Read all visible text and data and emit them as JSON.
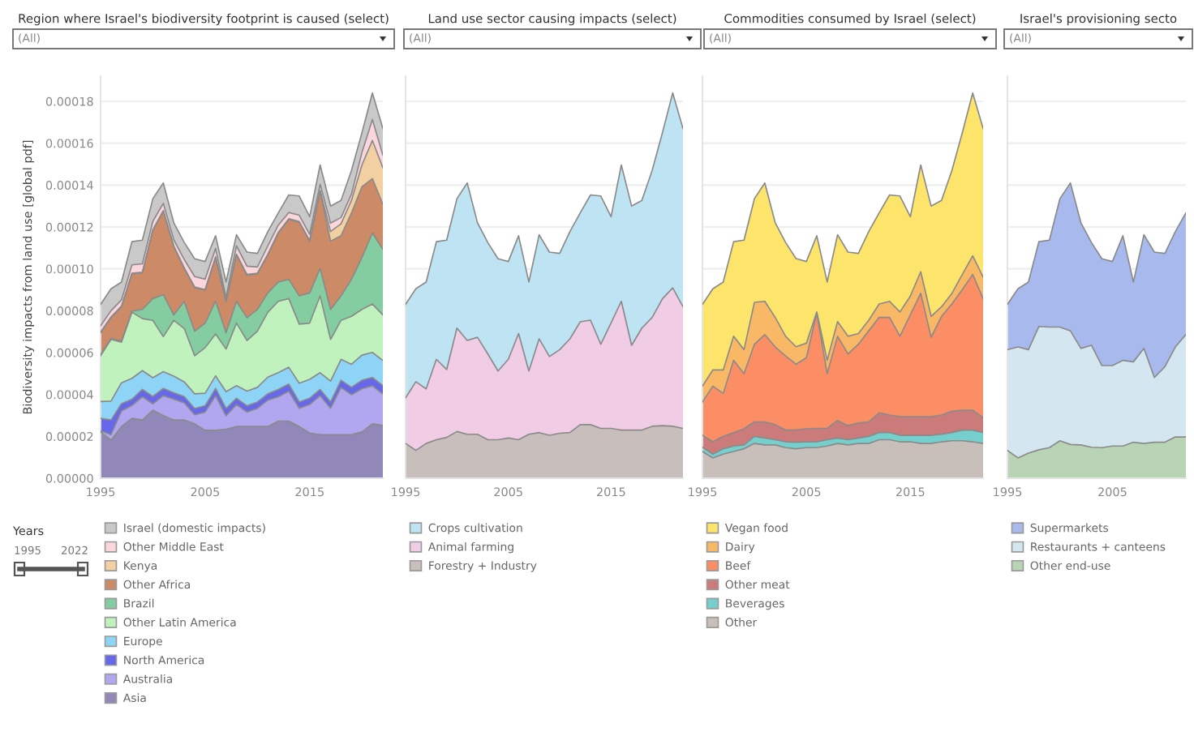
{
  "chart_data": [
    {
      "type": "area",
      "stacked": true,
      "title": "Region where Israel's biodiversity footprint is caused (select)",
      "ylabel": "Biodiversity impacts from land use [global pdf]",
      "x": [
        1995,
        1996,
        1997,
        1998,
        1999,
        2000,
        2001,
        2002,
        2003,
        2004,
        2005,
        2006,
        2007,
        2008,
        2009,
        2010,
        2011,
        2012,
        2013,
        2014,
        2015,
        2016,
        2017,
        2018,
        2019,
        2020,
        2021,
        2022
      ],
      "xlim": [
        1995,
        2022
      ],
      "xticks": [
        1995,
        2005,
        2015
      ],
      "ylim": [
        0,
        0.000192
      ],
      "yticks": [
        {
          "value": 0,
          "label": "0.00000"
        },
        {
          "value": 2e-05,
          "label": "0.00002"
        },
        {
          "value": 4e-05,
          "label": "0.00004"
        },
        {
          "value": 6e-05,
          "label": "0.00006"
        },
        {
          "value": 8e-05,
          "label": "0.00008"
        },
        {
          "value": 0.0001,
          "label": "0.00010"
        },
        {
          "value": 0.00012,
          "label": "0.00012"
        },
        {
          "value": 0.00014,
          "label": "0.00014"
        },
        {
          "value": 0.00016,
          "label": "0.00016"
        },
        {
          "value": 0.00018,
          "label": "0.00018"
        }
      ],
      "grid": "y",
      "legend": "bottom",
      "annotations": [
        "(All)",
        "Years",
        "1995",
        "2022"
      ],
      "series": [
        {
          "name": "Asia",
          "color": "#9188b9",
          "values": [
            2.21e-05,
            1.82e-05,
            2.47e-05,
            2.86e-05,
            2.78e-05,
            3.25e-05,
            2.99e-05,
            2.78e-05,
            2.78e-05,
            2.6e-05,
            2.29e-05,
            2.29e-05,
            2.34e-05,
            2.47e-05,
            2.47e-05,
            2.47e-05,
            2.47e-05,
            2.73e-05,
            2.73e-05,
            2.47e-05,
            2.16e-05,
            2.08e-05,
            2.08e-05,
            2.08e-05,
            2.08e-05,
            2.21e-05,
            2.6e-05,
            2.52e-05
          ]
        },
        {
          "name": "Australia",
          "color": "#b1a7f0",
          "values": [
            5e-07,
            2.6e-06,
            7.4e-06,
            6.1e-06,
            1.11e-05,
            3e-06,
            9.5e-06,
            1e-05,
            8.2e-06,
            4.3e-06,
            8.7e-06,
            1.65e-05,
            6.4e-06,
            1.05e-05,
            6.9e-06,
            8.7e-06,
            1.26e-05,
            1.16e-05,
            1.42e-05,
            8.7e-06,
            1.36e-05,
            1.86e-05,
            1.26e-05,
            2.25e-05,
            1.91e-05,
            2.07e-05,
            1.81e-05,
            1.5e-05
          ]
        },
        {
          "name": "North America",
          "color": "#6767ec",
          "values": [
            6e-06,
            7e-06,
            3.5e-06,
            3e-06,
            3.5e-06,
            3.5e-06,
            3.5e-06,
            3e-06,
            3e-06,
            3e-06,
            3e-06,
            3.5e-06,
            3.5e-06,
            3e-06,
            3e-06,
            3e-06,
            3e-06,
            3.5e-06,
            3.5e-06,
            3e-06,
            3e-06,
            3e-06,
            3e-06,
            3.5e-06,
            3.5e-06,
            4e-06,
            4e-06,
            4e-06
          ]
        },
        {
          "name": "Europe",
          "color": "#8ed4f6",
          "values": [
            8e-06,
            9e-06,
            1e-05,
            1e-05,
            9e-06,
            9e-06,
            8e-06,
            8e-06,
            7e-06,
            7e-06,
            6e-06,
            6e-06,
            8e-06,
            6e-06,
            7e-06,
            7e-06,
            8e-06,
            8e-06,
            8e-06,
            9e-06,
            9e-06,
            8e-06,
            1e-05,
            1e-05,
            1.1e-05,
            1.2e-05,
            1.2e-05,
            1.2e-05
          ]
        },
        {
          "name": "Other Latin America",
          "color": "#bff2bd",
          "values": [
            2.19e-05,
            2.95e-05,
            1.94e-05,
            3.16e-05,
            2.48e-05,
            2.74e-05,
            1.67e-05,
            2.66e-05,
            2.55e-05,
            1.82e-05,
            2.18e-05,
            2e-05,
            2.04e-05,
            2.99e-05,
            2.42e-05,
            2.68e-05,
            3.1e-05,
            3.41e-05,
            3.28e-05,
            2.82e-05,
            2.69e-05,
            3.67e-05,
            1.99e-05,
            1.86e-05,
            2.29e-05,
            2.18e-05,
            2.31e-05,
            2.18e-05
          ]
        },
        {
          "name": "Brazil",
          "color": "#83cda0",
          "values": [
            5e-07,
            5e-07,
            5e-07,
            5e-07,
            4.4e-06,
            1.04e-05,
            2.01e-05,
            2.6e-06,
            1.3e-05,
            1.17e-05,
            1.17e-05,
            1.56e-05,
            7.8e-06,
            1.04e-05,
            1.09e-05,
            1.04e-05,
            9.2e-06,
            9.2e-06,
            9.2e-06,
            1.35e-05,
            1.44e-05,
            1.31e-05,
            1.43e-05,
            1.17e-05,
            1.77e-05,
            2.48e-05,
            3.39e-05,
            3.13e-05
          ]
        },
        {
          "name": "Other Africa",
          "color": "#cc8a66",
          "values": [
            1.05e-05,
            9.9e-06,
            1.64e-05,
            1.78e-05,
            1.75e-05,
            3.26e-05,
            3.98e-05,
            3.26e-05,
            1.57e-05,
            2.08e-05,
            1.57e-05,
            2.09e-05,
            1.5e-05,
            2.22e-05,
            2.03e-05,
            1.7e-05,
            1.82e-05,
            2.34e-05,
            2.86e-05,
            3.52e-05,
            2.47e-05,
            3.69e-05,
            3.26e-05,
            2.87e-05,
            3.17e-05,
            3.38e-05,
            2.6e-05,
            2.16e-05
          ]
        },
        {
          "name": "Kenya",
          "color": "#f3d0a2",
          "values": [
            3e-07,
            3e-07,
            3e-07,
            3e-07,
            3e-07,
            3e-07,
            3e-07,
            3e-07,
            3e-07,
            3e-07,
            3e-07,
            3e-07,
            3e-07,
            3e-07,
            3e-07,
            3e-07,
            3e-07,
            3e-07,
            3e-07,
            3e-07,
            3e-07,
            3e-07,
            4.6e-06,
            5.7e-06,
            6e-06,
            1.04e-05,
            1.82e-05,
            1.74e-05
          ]
        },
        {
          "name": "Other Middle East",
          "color": "#fcd6dd",
          "values": [
            3e-06,
            3e-06,
            3e-06,
            4e-06,
            4e-06,
            4e-06,
            3.5e-06,
            3e-06,
            4e-06,
            5e-06,
            5e-06,
            4e-06,
            1.5e-06,
            4e-06,
            4e-06,
            3e-06,
            4e-06,
            3.5e-06,
            3e-06,
            3e-06,
            3e-06,
            3e-06,
            4e-06,
            3e-06,
            3e-06,
            6e-06,
            1e-05,
            6e-06
          ]
        },
        {
          "name": "Israel (domestic impacts)",
          "color": "#c9c9c9",
          "values": [
            1.02e-05,
            1.05e-05,
            8.5e-06,
            1.11e-05,
            1.13e-05,
            1.08e-05,
            9.7e-06,
            8.1e-06,
            8.1e-06,
            8.5e-06,
            8.4e-06,
            6.1e-06,
            7.4e-06,
            5.3e-06,
            6.7e-06,
            6.5e-06,
            6.8e-06,
            5.8e-06,
            8.4e-06,
            9.2e-06,
            8.4e-06,
            9.2e-06,
            8.2e-06,
            8.2e-06,
            1.13e-05,
            9.4e-06,
            1.27e-05,
            1.27e-05
          ]
        }
      ]
    },
    {
      "type": "area",
      "stacked": true,
      "title": "Land use sector causing impacts (select)",
      "x": [
        1995,
        1996,
        1997,
        1998,
        1999,
        2000,
        2001,
        2002,
        2003,
        2004,
        2005,
        2006,
        2007,
        2008,
        2009,
        2010,
        2011,
        2012,
        2013,
        2014,
        2015,
        2016,
        2017,
        2018,
        2019,
        2020,
        2021,
        2022
      ],
      "xlim": [
        1995,
        2022
      ],
      "xticks": [
        1995,
        2005,
        2015
      ],
      "ylim": [
        0,
        0.000192
      ],
      "yticks": [
        0,
        2e-05,
        4e-05,
        6e-05,
        8e-05,
        0.0001,
        0.00012,
        0.00014,
        0.00016,
        0.00018
      ],
      "grid": "y",
      "legend": "bottom",
      "tick_labels": "x",
      "annotations": [
        "(All)"
      ],
      "series": [
        {
          "name": "Forestry + Industry",
          "color": "#c8bebb",
          "values": [
            1.66e-05,
            1.33e-05,
            1.66e-05,
            1.84e-05,
            1.95e-05,
            2.23e-05,
            2.1e-05,
            2.1e-05,
            1.84e-05,
            1.84e-05,
            1.92e-05,
            1.84e-05,
            2.1e-05,
            2.18e-05,
            2.05e-05,
            2.15e-05,
            2.18e-05,
            2.56e-05,
            2.56e-05,
            2.38e-05,
            2.38e-05,
            2.3e-05,
            2.3e-05,
            2.3e-05,
            2.48e-05,
            2.51e-05,
            2.48e-05,
            2.38e-05
          ]
        },
        {
          "name": "Animal farming",
          "color": "#f0cde4",
          "values": [
            2.18e-05,
            3.28e-05,
            2.61e-05,
            3.84e-05,
            3.24e-05,
            4.94e-05,
            4.48e-05,
            4.63e-05,
            4.1e-05,
            3.28e-05,
            3.76e-05,
            5.07e-05,
            3.02e-05,
            4.48e-05,
            3.76e-05,
            3.99e-05,
            4.48e-05,
            4.91e-05,
            4.99e-05,
            4.02e-05,
            5.04e-05,
            6.15e-05,
            4.05e-05,
            4.87e-05,
            5.2e-05,
            6.06e-05,
            6.61e-05,
            5.81e-05
          ]
        },
        {
          "name": "Crops cultivation",
          "color": "#bee3f2",
          "values": [
            4.46e-05,
            4.44e-05,
            5.1e-05,
            5.62e-05,
            6.18e-05,
            6.18e-05,
            7.52e-05,
            5.47e-05,
            5.32e-05,
            5.36e-05,
            4.67e-05,
            4.67e-05,
            4.25e-05,
            4.97e-05,
            4.99e-05,
            4.6e-05,
            5.12e-05,
            5.2e-05,
            5.98e-05,
            7.08e-05,
            5.07e-05,
            6.51e-05,
            6.65e-05,
            6.1e-05,
            7.02e-05,
            7.93e-05,
            9.31e-05,
            8.51e-05
          ]
        }
      ]
    },
    {
      "type": "area",
      "stacked": true,
      "title": "Commodities consumed by Israel (select)",
      "x": [
        1995,
        1996,
        1997,
        1998,
        1999,
        2000,
        2001,
        2002,
        2003,
        2004,
        2005,
        2006,
        2007,
        2008,
        2009,
        2010,
        2011,
        2012,
        2013,
        2014,
        2015,
        2016,
        2017,
        2018,
        2019,
        2020,
        2021,
        2022
      ],
      "xlim": [
        1995,
        2022
      ],
      "xticks": [
        1995,
        2005,
        2015
      ],
      "ylim": [
        0,
        0.000192
      ],
      "yticks": [
        0,
        2e-05,
        4e-05,
        6e-05,
        8e-05,
        0.0001,
        0.00012,
        0.00014,
        0.00016,
        0.00018
      ],
      "grid": "y",
      "legend": "bottom",
      "tick_labels": "x",
      "annotations": [
        "(All)"
      ],
      "series": [
        {
          "name": "Other",
          "color": "#c8bfbb",
          "values": [
            1.28e-05,
            9.7e-06,
            1.15e-05,
            1.28e-05,
            1.41e-05,
            1.66e-05,
            1.59e-05,
            1.59e-05,
            1.46e-05,
            1.41e-05,
            1.46e-05,
            1.46e-05,
            1.54e-05,
            1.66e-05,
            1.59e-05,
            1.66e-05,
            1.66e-05,
            1.84e-05,
            1.84e-05,
            1.74e-05,
            1.74e-05,
            1.66e-05,
            1.66e-05,
            1.74e-05,
            1.79e-05,
            1.79e-05,
            1.74e-05,
            1.66e-05
          ]
        },
        {
          "name": "Beverages",
          "color": "#74cfcd",
          "values": [
            2e-06,
            1.8e-06,
            2.6e-06,
            2.6e-06,
            1.8e-06,
            3.4e-06,
            3.3e-06,
            2.5e-06,
            2.8e-06,
            3.1e-06,
            2.8e-06,
            2.8e-06,
            3e-06,
            2.6e-06,
            2.5e-06,
            2.6e-06,
            3.4e-06,
            3.4e-06,
            3.4e-06,
            3.1e-06,
            3.1e-06,
            3.9e-06,
            3.9e-06,
            3.6e-06,
            3.9e-06,
            5.1e-06,
            5.6e-06,
            5.2e-06
          ]
        },
        {
          "name": "Other meat",
          "color": "#cc7b7b",
          "values": [
            5.7e-06,
            5.9e-06,
            5.9e-06,
            6.4e-06,
            7.7e-06,
            6.9e-06,
            7.7e-06,
            7.2e-06,
            5.6e-06,
            5.9e-06,
            6.2e-06,
            6.4e-06,
            5.4e-06,
            8.4e-06,
            6.7e-06,
            7.2e-06,
            6.9e-06,
            9.4e-06,
            8.4e-06,
            8.9e-06,
            8.9e-06,
            8.9e-06,
            8.9e-06,
            9.2e-06,
            1.02e-05,
            9.5e-06,
            9.5e-06,
            7.1e-06
          ]
        },
        {
          "name": "Beef",
          "color": "#fc8e66",
          "values": [
            1.59e-05,
            2.66e-05,
            2.05e-05,
            3.45e-05,
            2.63e-05,
            3.71e-05,
            4.17e-05,
            3.71e-05,
            3.54e-05,
            3.13e-05,
            3.4e-05,
            5.51e-05,
            2.61e-05,
            4.02e-05,
            3.43e-05,
            3.76e-05,
            4.35e-05,
            4.56e-05,
            4.66e-05,
            3.84e-05,
            4.87e-05,
            5.89e-05,
            3.79e-05,
            4.71e-05,
            5.12e-05,
            5.76e-05,
            6.48e-05,
            5.69e-05
          ]
        },
        {
          "name": "Dairy",
          "color": "#f9b866",
          "values": [
            7.6e-06,
            7.7e-06,
            1.12e-05,
            1.15e-05,
            1.15e-05,
            2e-05,
            1.59e-05,
            1.41e-05,
            9.4e-06,
            8.4e-06,
            6.9e-06,
            5e-07,
            6.4e-06,
            7e-06,
            8.4e-06,
            5.1e-06,
            5.1e-06,
            6.4e-06,
            7.7e-06,
            1.16e-05,
            8.9e-06,
            1.03e-05,
            1e-05,
            4.6e-06,
            5.1e-06,
            7.2e-06,
            8.9e-06,
            1.02e-05
          ]
        },
        {
          "name": "Vegan food",
          "color": "#fde46b",
          "values": [
            3.9e-05,
            3.88e-05,
            4.2e-05,
            4.52e-05,
            5.23e-05,
            4.95e-05,
            5.65e-05,
            4.52e-05,
            4.48e-05,
            4.21e-05,
            3.9e-05,
            3.64e-05,
            3.74e-05,
            4.15e-05,
            4.02e-05,
            3.83e-05,
            4.23e-05,
            4.35e-05,
            5.08e-05,
            5.54e-05,
            3.79e-05,
            5.1e-05,
            5.27e-05,
            5.08e-05,
            5.87e-05,
            6.77e-05,
            7.78e-05,
            7.1e-05
          ]
        }
      ]
    },
    {
      "type": "area",
      "stacked": true,
      "title": "Israel's provisioning secto",
      "x": [
        1995,
        1996,
        1997,
        1998,
        1999,
        2000,
        2001,
        2002,
        2003,
        2004,
        2005,
        2006,
        2007,
        2008,
        2009,
        2010,
        2011,
        2012
      ],
      "xlim": [
        1995,
        2012
      ],
      "xticks": [
        1995,
        2005
      ],
      "ylim": [
        0,
        0.000192
      ],
      "yticks": [
        0,
        2e-05,
        4e-05,
        6e-05,
        8e-05,
        0.0001,
        0.00012,
        0.00014,
        0.00016,
        0.00018
      ],
      "grid": "y",
      "legend": "bottom",
      "tick_labels": "x",
      "annotations": [
        "(All)"
      ],
      "series": [
        {
          "name": "Other end-use",
          "color": "#b9d4b5",
          "values": [
            1.33e-05,
            9.7e-06,
            1.2e-05,
            1.36e-05,
            1.46e-05,
            1.79e-05,
            1.61e-05,
            1.59e-05,
            1.48e-05,
            1.46e-05,
            1.54e-05,
            1.54e-05,
            1.72e-05,
            1.66e-05,
            1.72e-05,
            1.72e-05,
            1.97e-05,
            1.97e-05
          ]
        },
        {
          "name": "Restaurants + canteens",
          "color": "#d4e6ef",
          "values": [
            4.81e-05,
            5.3e-05,
            4.94e-05,
            5.89e-05,
            5.76e-05,
            5.43e-05,
            5.43e-05,
            4.61e-05,
            4.87e-05,
            3.92e-05,
            3.84e-05,
            4.09e-05,
            3.84e-05,
            4.54e-05,
            3.09e-05,
            3.61e-05,
            4.3e-05,
            4.89e-05
          ]
        },
        {
          "name": "Supermarkets",
          "color": "#a7b9ed",
          "values": [
            2.16e-05,
            2.78e-05,
            3.23e-05,
            4.05e-05,
            4.15e-05,
            6.13e-05,
            7.06e-05,
            6e-05,
            4.91e-05,
            5.1e-05,
            4.97e-05,
            5.95e-05,
            3.81e-05,
            5.43e-05,
            5.99e-05,
            5.41e-05,
            5.51e-05,
            5.81e-05
          ]
        }
      ]
    }
  ]
}
